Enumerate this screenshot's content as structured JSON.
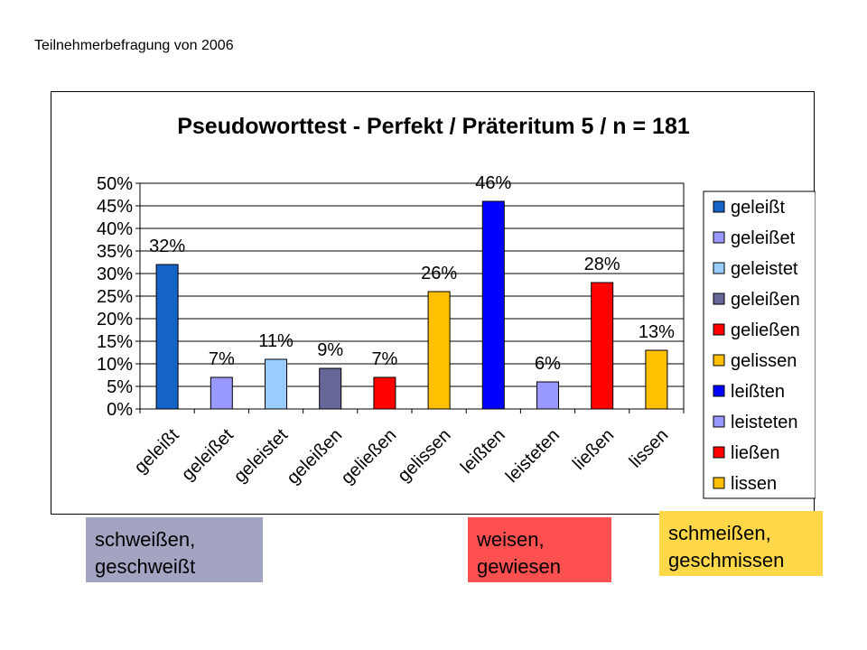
{
  "caption": "Teilnehmerbefragung von 2006",
  "chart_data": {
    "type": "bar",
    "title": "Pseudoworttest - Perfekt / Präteritum 5 / n = 181",
    "categories": [
      "geleißt",
      "geleißet",
      "geleistet",
      "geleißen",
      "geließen",
      "gelissen",
      "leißten",
      "leisteten",
      "ließen",
      "lissen"
    ],
    "values": [
      32,
      7,
      11,
      9,
      7,
      26,
      46,
      6,
      28,
      13
    ],
    "data_labels": [
      "32%",
      "7%",
      "11%",
      "9%",
      "7%",
      "26%",
      "46%",
      "6%",
      "28%",
      "13%"
    ],
    "colors": [
      "#1464c8",
      "#9999ff",
      "#99ccff",
      "#666699",
      "#ff0000",
      "#ffc000",
      "#0000ff",
      "#9999ff",
      "#ff0000",
      "#ffc000"
    ],
    "yticks": [
      "0%",
      "5%",
      "10%",
      "15%",
      "20%",
      "25%",
      "30%",
      "35%",
      "40%",
      "45%",
      "50%"
    ],
    "ylim": [
      0,
      50
    ],
    "grid": true,
    "legend": {
      "position": "right",
      "entries": [
        "geleißt",
        "geleißet",
        "geleistet",
        "geleißen",
        "geließen",
        "gelissen",
        "leißten",
        "leisteten",
        "ließen",
        "lissen"
      ]
    },
    "xlabel": "",
    "ylabel": ""
  },
  "notes": {
    "a": "schweißen, geschweißt",
    "b": "weisen, gewiesen",
    "c": "schmeißen, geschmissen"
  }
}
